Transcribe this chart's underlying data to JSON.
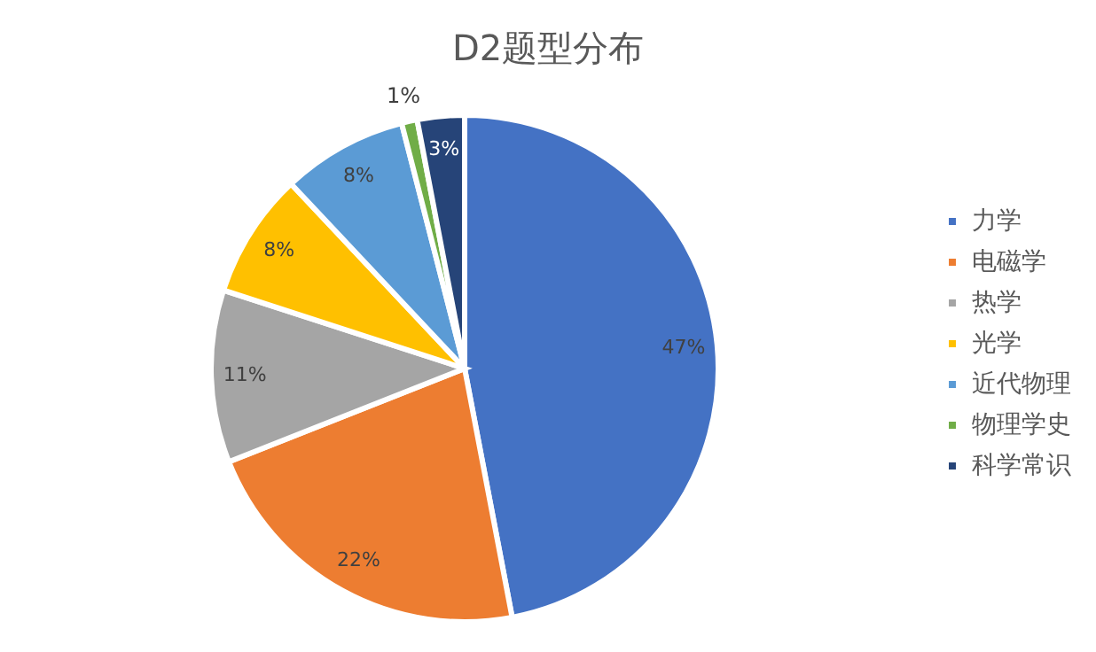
{
  "chart_data": {
    "type": "pie",
    "title": "D2题型分布",
    "categories": [
      "力学",
      "电磁学",
      "热学",
      "光学",
      "近代物理",
      "物理学史",
      "科学常识"
    ],
    "values": [
      47,
      22,
      11,
      8,
      8,
      1,
      3
    ],
    "colors": [
      "#4472c4",
      "#ed7d31",
      "#a5a5a5",
      "#ffc000",
      "#5b9bd5",
      "#70ad47",
      "#264478"
    ],
    "value_labels": [
      "47%",
      "22%",
      "11%",
      "8%",
      "8%",
      "1%",
      "3%"
    ],
    "legend": "right"
  }
}
